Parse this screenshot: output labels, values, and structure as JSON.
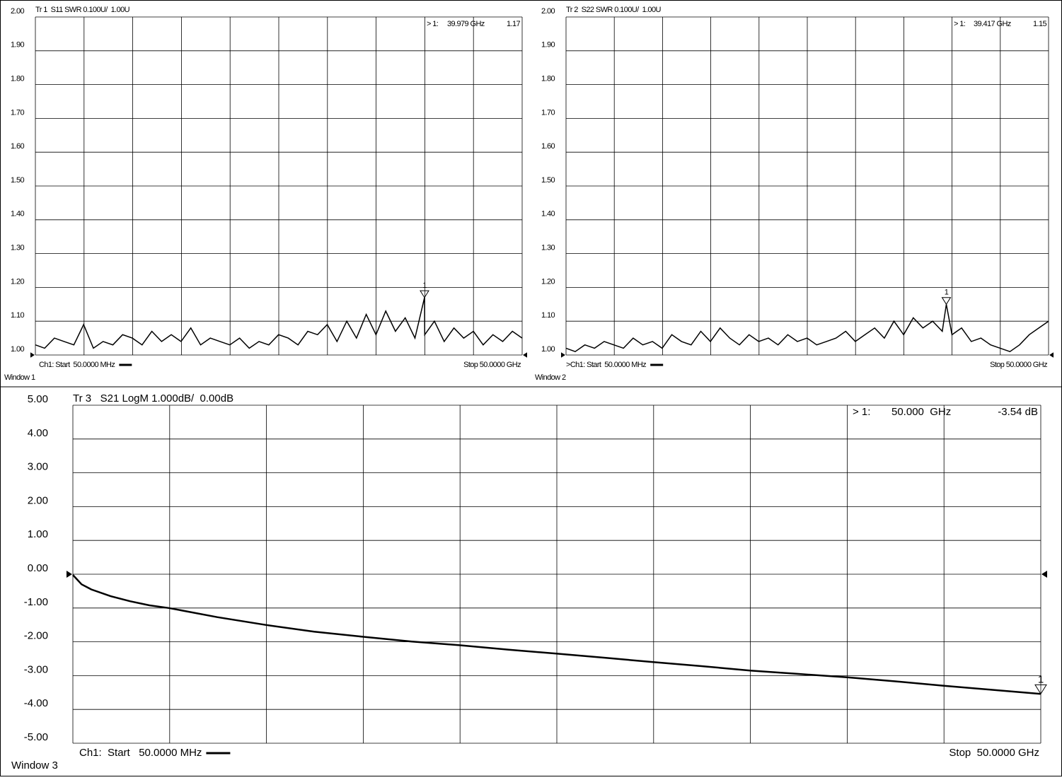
{
  "chart_data": [
    {
      "type": "line",
      "header": "Tr 1  S11 SWR 0.100U/  1.00U",
      "window": "Window 1",
      "start_label": "Ch1: Start  50.0000 MHz",
      "stop_label": "Stop 50.0000 GHz",
      "xlim": [
        0.05,
        50
      ],
      "ylim": [
        1,
        2
      ],
      "grid": true,
      "yticks": [
        {
          "value": 2,
          "label": "2.00"
        },
        {
          "value": 1.9,
          "label": "1.90"
        },
        {
          "value": 1.8,
          "label": "1.80"
        },
        {
          "value": 1.7,
          "label": "1.70"
        },
        {
          "value": 1.6,
          "label": "1.60"
        },
        {
          "value": 1.5,
          "label": "1.50"
        },
        {
          "value": 1.4,
          "label": "1.40"
        },
        {
          "value": 1.3,
          "label": "1.30"
        },
        {
          "value": 1.2,
          "label": "1.20"
        },
        {
          "value": 1.1,
          "label": "1.10"
        },
        {
          "value": 1,
          "label": "1.00"
        }
      ],
      "x": [
        0.05,
        1,
        2,
        3,
        4,
        5,
        6,
        7,
        8,
        9,
        10,
        11,
        12,
        13,
        14,
        15,
        16,
        17,
        18,
        19,
        20,
        21,
        22,
        23,
        24,
        25,
        26,
        27,
        28,
        29,
        30,
        31,
        32,
        33,
        34,
        35,
        36,
        37,
        38,
        39,
        39.979,
        40,
        41,
        42,
        43,
        44,
        45,
        46,
        47,
        48,
        49,
        50
      ],
      "series": [
        {
          "color": "#000000",
          "values": [
            1.03,
            1.02,
            1.05,
            1.04,
            1.03,
            1.09,
            1.02,
            1.04,
            1.03,
            1.06,
            1.05,
            1.03,
            1.07,
            1.04,
            1.06,
            1.04,
            1.08,
            1.03,
            1.05,
            1.04,
            1.03,
            1.05,
            1.02,
            1.04,
            1.03,
            1.06,
            1.05,
            1.03,
            1.07,
            1.06,
            1.09,
            1.04,
            1.1,
            1.05,
            1.12,
            1.06,
            1.13,
            1.07,
            1.11,
            1.05,
            1.17,
            1.06,
            1.1,
            1.04,
            1.08,
            1.05,
            1.07,
            1.03,
            1.06,
            1.04,
            1.07,
            1.05
          ]
        }
      ],
      "marker": {
        "name": "1",
        "label": "> 1:",
        "x": 39.979,
        "x_label": "39.979 GHz",
        "value": 1.17
      }
    },
    {
      "type": "line",
      "header": "Tr 2  S22 SWR 0.100U/  1.00U",
      "window": "Window 2",
      "start_label": ">Ch1: Start  50.0000 MHz",
      "stop_label": "Stop 50.0000 GHz",
      "xlim": [
        0.05,
        50
      ],
      "ylim": [
        1,
        2
      ],
      "grid": true,
      "yticks": [
        {
          "value": 2,
          "label": "2.00"
        },
        {
          "value": 1.9,
          "label": "1.90"
        },
        {
          "value": 1.8,
          "label": "1.80"
        },
        {
          "value": 1.7,
          "label": "1.70"
        },
        {
          "value": 1.6,
          "label": "1.60"
        },
        {
          "value": 1.5,
          "label": "1.50"
        },
        {
          "value": 1.4,
          "label": "1.40"
        },
        {
          "value": 1.3,
          "label": "1.30"
        },
        {
          "value": 1.2,
          "label": "1.20"
        },
        {
          "value": 1.1,
          "label": "1.10"
        },
        {
          "value": 1,
          "label": "1.00"
        }
      ],
      "x": [
        0.05,
        1,
        2,
        3,
        4,
        5,
        6,
        7,
        8,
        9,
        10,
        11,
        12,
        13,
        14,
        15,
        16,
        17,
        18,
        19,
        20,
        21,
        22,
        23,
        24,
        25,
        26,
        27,
        28,
        29,
        30,
        31,
        32,
        33,
        34,
        35,
        36,
        37,
        38,
        39,
        39.417,
        40,
        41,
        42,
        43,
        44,
        45,
        46,
        47,
        48,
        49,
        50
      ],
      "series": [
        {
          "color": "#000000",
          "values": [
            1.02,
            1.01,
            1.03,
            1.02,
            1.04,
            1.03,
            1.02,
            1.05,
            1.03,
            1.04,
            1.02,
            1.06,
            1.04,
            1.03,
            1.07,
            1.04,
            1.08,
            1.05,
            1.03,
            1.06,
            1.04,
            1.05,
            1.03,
            1.06,
            1.04,
            1.05,
            1.03,
            1.04,
            1.05,
            1.07,
            1.04,
            1.06,
            1.08,
            1.05,
            1.1,
            1.06,
            1.11,
            1.08,
            1.1,
            1.07,
            1.15,
            1.06,
            1.08,
            1.04,
            1.05,
            1.03,
            1.02,
            1.01,
            1.03,
            1.06,
            1.08,
            1.1
          ]
        }
      ],
      "marker": {
        "name": "1",
        "label": "> 1:",
        "x": 39.417,
        "x_label": "39.417 GHz",
        "value": 1.15
      }
    },
    {
      "type": "line",
      "header": "Tr 3   S21 LogM 1.000dB/  0.00dB",
      "window": "Window 3",
      "start_label": "Ch1:  Start   50.0000 MHz",
      "stop_label": "Stop  50.0000 GHz",
      "xlim": [
        0.05,
        50
      ],
      "ylim": [
        -5,
        5
      ],
      "grid": true,
      "yticks": [
        {
          "value": 5,
          "label": "5.00"
        },
        {
          "value": 4,
          "label": "4.00"
        },
        {
          "value": 3,
          "label": "3.00"
        },
        {
          "value": 2,
          "label": "2.00"
        },
        {
          "value": 1,
          "label": "1.00"
        },
        {
          "value": 0,
          "label": "0.00"
        },
        {
          "value": -1,
          "label": "-1.00"
        },
        {
          "value": -2,
          "label": "-2.00"
        },
        {
          "value": -3,
          "label": "-3.00"
        },
        {
          "value": -4,
          "label": "-4.00"
        },
        {
          "value": -5,
          "label": "-5.00"
        }
      ],
      "x": [
        0.05,
        0.5,
        1,
        2,
        3,
        4,
        5,
        7.5,
        10,
        12.5,
        15,
        17.5,
        20,
        22.5,
        25,
        27.5,
        30,
        32.5,
        35,
        37.5,
        40,
        42.5,
        45,
        47.5,
        50
      ],
      "series": [
        {
          "color": "#000000",
          "values": [
            -0.02,
            -0.3,
            -0.45,
            -0.65,
            -0.8,
            -0.92,
            -1.0,
            -1.27,
            -1.5,
            -1.7,
            -1.85,
            -1.99,
            -2.1,
            -2.23,
            -2.35,
            -2.47,
            -2.6,
            -2.72,
            -2.85,
            -2.95,
            -3.05,
            -3.17,
            -3.3,
            -3.42,
            -3.54
          ]
        }
      ],
      "marker": {
        "name": "1",
        "label": "> 1:",
        "x": 50,
        "x_label": "50.000  GHz",
        "value": -3.54,
        "value_label": "-3.54 dB"
      }
    }
  ]
}
